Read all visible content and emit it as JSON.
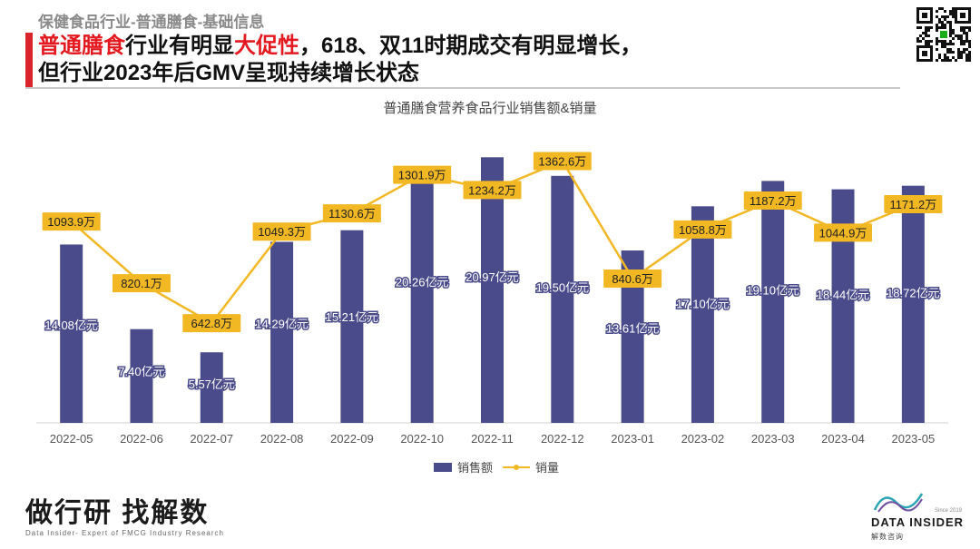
{
  "header": {
    "breadcrumb": "保健食品行业-普通膳食-基础信息",
    "headline_line1_red1": "普通膳食",
    "headline_line1_mid": "行业有明显",
    "headline_line1_red2": "大促性",
    "headline_line1_tail": "，618、双11时期成交有明显增长，",
    "headline_line2": "但行业2023年后GMV呈现持续增长状态"
  },
  "colors": {
    "accent": "#d9232d",
    "bar": "#4a4b8a",
    "line": "#f2b824"
  },
  "chart_data": {
    "type": "bar+line",
    "title": "普通膳食营养食品行业销售额&销量",
    "categories": [
      "2022-05",
      "2022-06",
      "2022-07",
      "2022-08",
      "2022-09",
      "2022-10",
      "2022-11",
      "2022-12",
      "2023-01",
      "2023-02",
      "2023-03",
      "2023-04",
      "2023-05"
    ],
    "series": [
      {
        "name": "销售额",
        "type": "bar",
        "unit": "亿元",
        "values": [
          14.08,
          7.4,
          5.57,
          14.29,
          15.21,
          20.26,
          20.97,
          19.5,
          13.61,
          17.1,
          19.1,
          18.44,
          18.72
        ],
        "labels": [
          "14.08亿元",
          "7.40亿元",
          "5.57亿元",
          "14.29亿元",
          "15.21亿元",
          "20.26亿元",
          "20.97亿元",
          "19.50亿元",
          "13.61亿元",
          "17.10亿元",
          "19.10亿元",
          "18.44亿元",
          "18.72亿元"
        ]
      },
      {
        "name": "销量",
        "type": "line",
        "unit": "万",
        "values": [
          1093.9,
          820.1,
          642.8,
          1049.3,
          1130.6,
          1301.9,
          1234.2,
          1362.6,
          840.6,
          1058.8,
          1187.2,
          1044.9,
          1171.2
        ],
        "labels": [
          "1093.9万",
          "820.1万",
          "642.8万",
          "1049.3万",
          "1130.6万",
          "1301.9万",
          "1234.2万",
          "1362.6万",
          "840.6万",
          "1058.8万",
          "1187.2万",
          "1044.9万",
          "1171.2万"
        ]
      }
    ],
    "bar_axis_range": [
      0,
      24
    ],
    "line_axis_range": [
      200,
      1550
    ],
    "legend": [
      "销售额",
      "销量"
    ],
    "legend_position": "bottom-center",
    "grid": false
  },
  "footer": {
    "slogan": "做行研 找解数",
    "tagline": "Data Insider- Expert of FMCG Industry Research",
    "brand_name": "DATA INSIDER",
    "brand_sub": "解数咨询",
    "brand_tiny": "Since 2019"
  }
}
